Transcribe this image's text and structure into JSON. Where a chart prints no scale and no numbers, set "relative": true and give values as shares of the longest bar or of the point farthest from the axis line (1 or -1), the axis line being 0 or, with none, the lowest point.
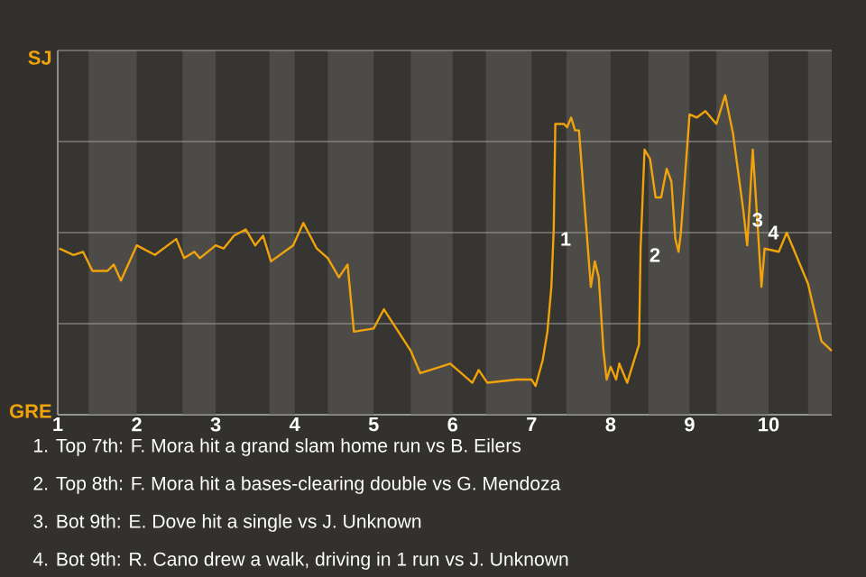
{
  "chart_data": {
    "type": "line",
    "relative": true,
    "grid": "y",
    "xlim": [
      1,
      10.8
    ],
    "xticks": [
      1,
      2,
      3,
      4,
      5,
      6,
      7,
      8,
      9,
      10
    ],
    "bands": [
      {
        "axis": "x",
        "from": 1.39,
        "to": 2,
        "color": "#4d4b48"
      },
      {
        "axis": "x",
        "from": 2.58,
        "to": 3,
        "color": "#4d4b48"
      },
      {
        "axis": "x",
        "from": 3.68,
        "to": 4,
        "color": "#4d4b48"
      },
      {
        "axis": "x",
        "from": 4.42,
        "to": 5,
        "color": "#4d4b48"
      },
      {
        "axis": "x",
        "from": 5.47,
        "to": 6,
        "color": "#4d4b48"
      },
      {
        "axis": "x",
        "from": 6.42,
        "to": 7,
        "color": "#4d4b48"
      },
      {
        "axis": "x",
        "from": 7.44,
        "to": 8,
        "color": "#4d4b48"
      },
      {
        "axis": "x",
        "from": 8.48,
        "to": 9,
        "color": "#4d4b48"
      },
      {
        "axis": "x",
        "from": 9.34,
        "to": 10,
        "color": "#4d4b48"
      },
      {
        "axis": "x",
        "from": 10.5,
        "to": 10.8,
        "color": "#4d4b48"
      }
    ],
    "series": [
      {
        "color": "#f0a30a",
        "x": [
          1.02,
          1.2,
          1.32,
          1.44,
          1.63,
          1.71,
          1.8,
          2.0,
          2.23,
          2.5,
          2.6,
          2.73,
          2.8,
          3.0,
          3.1,
          3.23,
          3.38,
          3.5,
          3.6,
          3.7,
          3.98,
          4.11,
          4.28,
          4.42,
          4.56,
          4.67,
          4.75,
          5.0,
          5.13,
          5.47,
          5.59,
          5.97,
          6.25,
          6.33,
          6.44,
          6.81,
          7.0,
          7.05,
          7.14,
          7.2,
          7.25,
          7.28,
          7.3,
          7.41,
          7.45,
          7.5,
          7.55,
          7.6,
          7.66,
          7.75,
          7.8,
          7.85,
          7.91,
          7.95,
          8.0,
          8.07,
          8.11,
          8.21,
          8.36,
          8.38,
          8.43,
          8.5,
          8.57,
          8.64,
          8.71,
          8.77,
          8.82,
          8.86,
          8.89,
          9.0,
          9.09,
          9.2,
          9.34,
          9.45,
          9.55,
          9.68,
          9.73,
          9.8,
          9.86,
          9.91,
          9.95,
          10.13,
          10.23,
          10.5,
          10.67,
          10.8
        ],
        "values": [
          0.52,
          0.5,
          0.51,
          0.45,
          0.45,
          0.47,
          0.42,
          0.53,
          0.5,
          0.55,
          0.49,
          0.51,
          0.49,
          0.53,
          0.52,
          0.56,
          0.58,
          0.53,
          0.56,
          0.48,
          0.53,
          0.6,
          0.52,
          0.49,
          0.43,
          0.47,
          0.26,
          0.27,
          0.33,
          0.2,
          0.13,
          0.16,
          0.1,
          0.14,
          0.1,
          0.11,
          0.11,
          0.09,
          0.17,
          0.26,
          0.4,
          0.58,
          0.91,
          0.91,
          0.9,
          0.93,
          0.89,
          0.89,
          0.69,
          0.4,
          0.48,
          0.43,
          0.2,
          0.11,
          0.15,
          0.11,
          0.16,
          0.1,
          0.22,
          0.52,
          0.83,
          0.8,
          0.68,
          0.68,
          0.77,
          0.73,
          0.55,
          0.51,
          0.57,
          0.94,
          0.93,
          0.95,
          0.91,
          1,
          0.88,
          0.64,
          0.53,
          0.83,
          0.6,
          0.4,
          0.52,
          0.51,
          0.57,
          0.41,
          0.23,
          0.2
        ]
      }
    ],
    "annotations": [
      {
        "text": "1",
        "x": 7.3,
        "y": 0.55
      },
      {
        "text": "2",
        "x": 8.43,
        "y": 0.5
      },
      {
        "text": "3",
        "x": 9.73,
        "y": 0.61
      },
      {
        "text": "4",
        "x": 9.93,
        "y": 0.57
      },
      "SJ",
      "GRE",
      "1. Top 7th: F. Mora hit a grand slam home run vs B. Eilers",
      "2. Top 8th: F. Mora hit a bases-clearing double vs G. Mendoza",
      "3. Bot 9th: E. Dove hit a single vs J. Unknown",
      "4. Bot 9th: R. Cano drew a walk, driving in 1 run vs J. Unknown"
    ]
  }
}
